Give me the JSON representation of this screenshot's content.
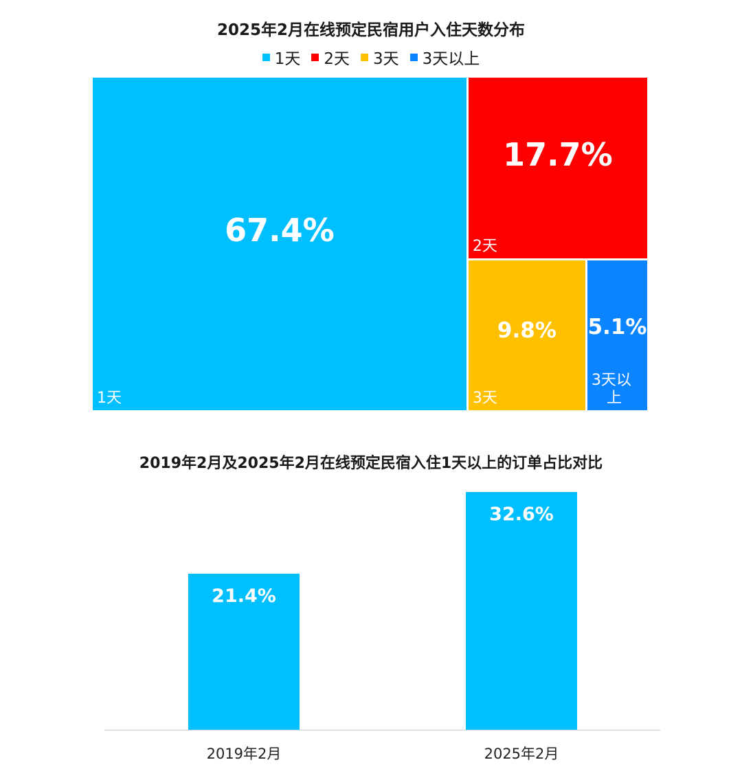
{
  "chart_data": [
    {
      "type": "treemap",
      "title": "2025年2月在线预定民宿用户入住天数分布",
      "legend": {
        "placement": "top",
        "entries": [
          "1天",
          "2天",
          "3天",
          "3天以上"
        ]
      },
      "categories": [
        "1天",
        "2天",
        "3天",
        "3天以上"
      ],
      "values": [
        67.4,
        17.7,
        9.8,
        5.1
      ],
      "value_labels": [
        "67.4%",
        "17.7%",
        "9.8%",
        "5.1%"
      ],
      "tile_labels": [
        "1天",
        "2天",
        "3天",
        "3天以\n上"
      ],
      "colors": [
        "#00BFFF",
        "#FF0000",
        "#FFC000",
        "#0A84FF"
      ]
    },
    {
      "type": "bar",
      "title": "2019年2月及2025年2月在线预定民宿入住1天以上的订单占比对比",
      "categories": [
        "2019年2月",
        "2025年2月"
      ],
      "values": [
        21.4,
        32.6
      ],
      "value_labels": [
        "21.4%",
        "32.6%"
      ],
      "ylim": [
        0,
        32.6
      ],
      "grid": false,
      "color": "#00BFFF"
    }
  ]
}
